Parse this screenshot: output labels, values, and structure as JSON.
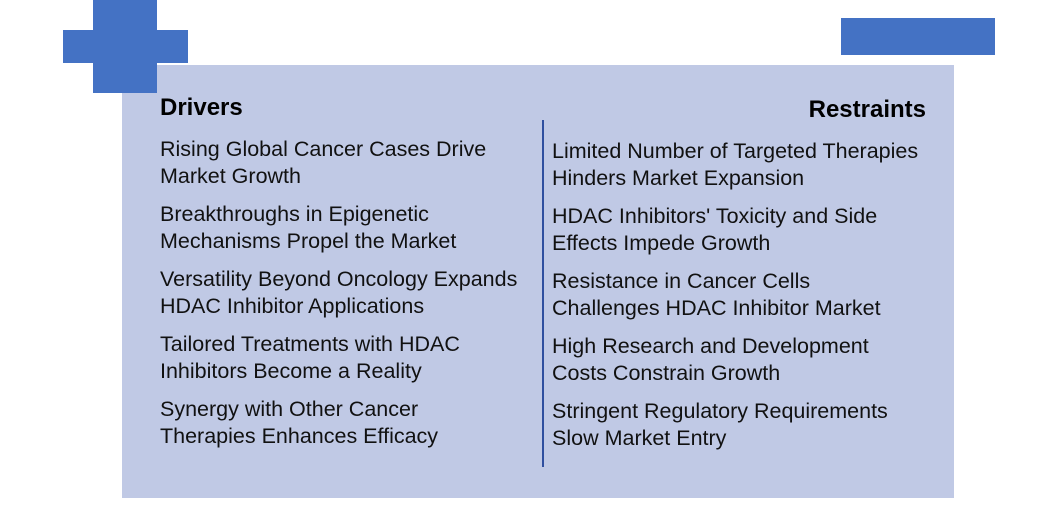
{
  "colors": {
    "accent": "#4472c4",
    "panel": "#c0c9e5",
    "divider": "#2f4f9f"
  },
  "drivers": {
    "title": "Drivers",
    "items": [
      "Rising Global Cancer Cases Drive Market Growth",
      "Breakthroughs in Epigenetic Mechanisms Propel the Market",
      "Versatility Beyond Oncology Expands HDAC Inhibitor Applications",
      "Tailored Treatments with HDAC Inhibitors Become a Reality",
      "Synergy with Other Cancer Therapies Enhances Efficacy"
    ]
  },
  "restraints": {
    "title": "Restraints",
    "items": [
      "Limited Number of Targeted Therapies Hinders Market Expansion",
      "HDAC Inhibitors' Toxicity and Side Effects Impede Growth",
      "Resistance in Cancer Cells Challenges HDAC Inhibitor Market",
      "High Research and Development Costs Constrain Growth",
      "Stringent Regulatory Requirements Slow Market Entry"
    ]
  }
}
